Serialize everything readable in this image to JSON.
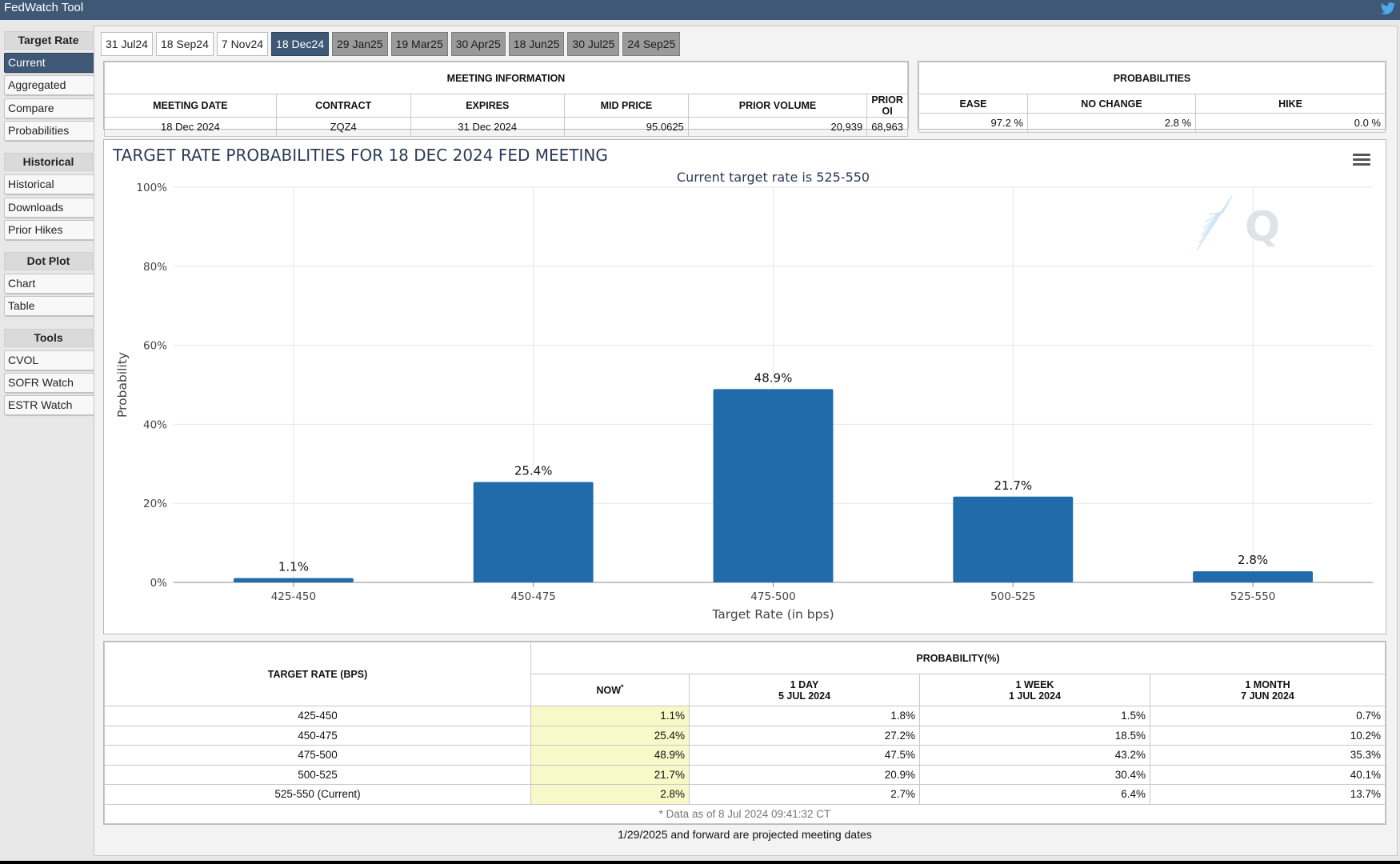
{
  "app": {
    "title": "FedWatch Tool",
    "twitter_icon": "twitter-bird-icon"
  },
  "sidebar": {
    "groups": [
      {
        "heading": "Target Rate",
        "items": [
          "Current",
          "Aggregated",
          "Compare",
          "Probabilities"
        ]
      },
      {
        "heading": "Historical",
        "items": [
          "Historical",
          "Downloads",
          "Prior Hikes"
        ]
      },
      {
        "heading": "Dot Plot",
        "items": [
          "Chart",
          "Table"
        ]
      },
      {
        "heading": "Tools",
        "items": [
          "CVOL",
          "SOFR Watch",
          "ESTR Watch"
        ]
      }
    ],
    "active": "Current"
  },
  "tabs": {
    "items": [
      "31 Jul24",
      "18 Sep24",
      "7 Nov24",
      "18 Dec24",
      "29 Jan25",
      "19 Mar25",
      "30 Apr25",
      "18 Jun25",
      "30 Jul25",
      "24 Sep25"
    ],
    "active": "18 Dec24",
    "future_start_index": 4
  },
  "meeting_info": {
    "caption": "MEETING INFORMATION",
    "headers": [
      "MEETING DATE",
      "CONTRACT",
      "EXPIRES",
      "MID PRICE",
      "PRIOR VOLUME",
      "PRIOR OI"
    ],
    "values": [
      "18 Dec 2024",
      "ZQZ4",
      "31 Dec 2024",
      "95.0625",
      "20,939",
      "68,963"
    ]
  },
  "probabilities": {
    "caption": "PROBABILITIES",
    "headers": [
      "EASE",
      "NO CHANGE",
      "HIKE"
    ],
    "values": [
      "97.2 %",
      "2.8 %",
      "0.0 %"
    ]
  },
  "chart_data": {
    "type": "bar",
    "title": "TARGET RATE PROBABILITIES FOR 18 DEC 2024 FED MEETING",
    "subtitle": "Current target rate is 525-550",
    "xlabel": "Target Rate (in bps)",
    "ylabel": "Probability",
    "categories": [
      "425-450",
      "450-475",
      "475-500",
      "500-525",
      "525-550"
    ],
    "values": [
      1.1,
      25.4,
      48.9,
      21.7,
      2.8
    ],
    "data_labels": [
      "1.1%",
      "25.4%",
      "48.9%",
      "21.7%",
      "2.8%"
    ],
    "ylim": [
      0,
      100
    ],
    "yticks": [
      "0%",
      "20%",
      "40%",
      "60%",
      "80%",
      "100%"
    ],
    "grid": true,
    "color": "#216baa",
    "menu_icon": "hamburger-menu-icon",
    "watermark": "Q"
  },
  "prob_table": {
    "col_target": "TARGET RATE (BPS)",
    "col_group": "PROBABILITY(%)",
    "col_now": "NOW",
    "col_now_mark": "*",
    "col_1day": [
      "1 DAY",
      "5 JUL 2024"
    ],
    "col_1week": [
      "1 WEEK",
      "1 JUL 2024"
    ],
    "col_1month": [
      "1 MONTH",
      "7 JUN 2024"
    ],
    "rows": [
      [
        "425-450",
        "1.1%",
        "1.8%",
        "1.5%",
        "0.7%"
      ],
      [
        "450-475",
        "25.4%",
        "27.2%",
        "18.5%",
        "10.2%"
      ],
      [
        "475-500",
        "48.9%",
        "47.5%",
        "43.2%",
        "35.3%"
      ],
      [
        "500-525",
        "21.7%",
        "20.9%",
        "30.4%",
        "40.1%"
      ],
      [
        "525-550 (Current)",
        "2.8%",
        "2.7%",
        "6.4%",
        "13.7%"
      ]
    ],
    "data_note": "* Data as of 8 Jul 2024 09:41:32 CT"
  },
  "footnote": "1/29/2025 and forward are projected meeting dates"
}
